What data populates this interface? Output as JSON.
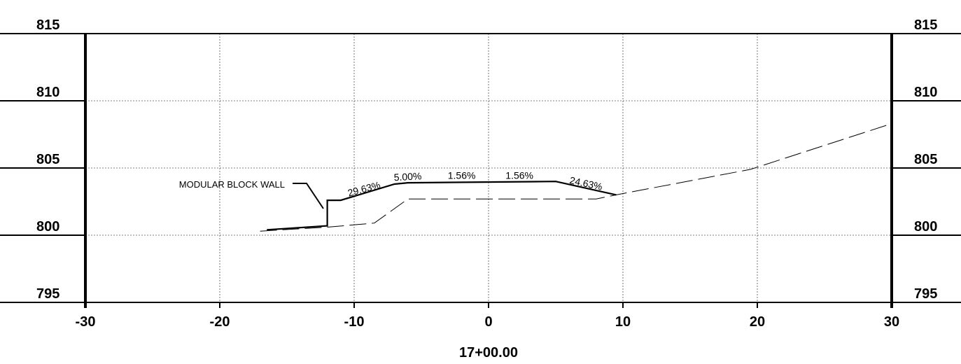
{
  "station": "17+00.00",
  "elevation_ticks": [
    815,
    810,
    805,
    800,
    795
  ],
  "offset_ticks": [
    -30,
    -20,
    -10,
    0,
    10,
    20,
    30
  ],
  "callout": {
    "text": "MODULAR BLOCK WALL"
  },
  "chart_data": {
    "type": "line",
    "x_range": [
      -30,
      30
    ],
    "y_range": [
      795,
      815
    ],
    "grid": true,
    "series": [
      {
        "style": "solid",
        "points": [
          [
            -16.5,
            800.4
          ],
          [
            -12,
            800.7
          ],
          [
            -12,
            802.6
          ],
          [
            -11,
            802.6
          ],
          [
            -7,
            803.8
          ],
          [
            -6,
            803.9
          ],
          [
            5,
            804.0
          ],
          [
            9.5,
            803.0
          ]
        ]
      },
      {
        "style": "dashed",
        "points": [
          [
            -17,
            800.3
          ],
          [
            -12,
            800.6
          ],
          [
            -8.5,
            800.9
          ],
          [
            -6,
            802.7
          ],
          [
            8,
            802.7
          ],
          [
            10,
            803.1
          ],
          [
            19.5,
            804.9
          ],
          [
            30,
            808.3
          ]
        ]
      }
    ],
    "slope_labels": [
      {
        "text": "29.63%",
        "x": -9.2,
        "y": 803.2,
        "angle": -15
      },
      {
        "text": "5.00%",
        "x": -6.0,
        "y": 804.1,
        "angle": -3
      },
      {
        "text": "1.56%",
        "x": -2.0,
        "y": 804.2,
        "angle": 0
      },
      {
        "text": "1.56%",
        "x": 2.3,
        "y": 804.2,
        "angle": 0
      },
      {
        "text": "24.63%",
        "x": 7.2,
        "y": 803.6,
        "angle": 12
      }
    ]
  }
}
